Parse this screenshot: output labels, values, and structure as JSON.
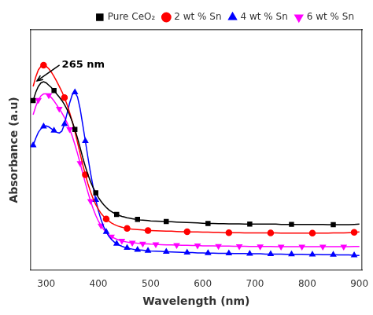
{
  "chart_data": {
    "type": "line",
    "xlabel": "Wavelength (nm)",
    "ylabel": "Absorbance (a.u)",
    "xlim": [
      270,
      905
    ],
    "ylim": [
      0.0,
      1.02
    ],
    "xticks": [
      300,
      400,
      500,
      600,
      700,
      800,
      900
    ],
    "tick_labels": "x",
    "grid": false,
    "legend": "upper right",
    "x": [
      275,
      280,
      285,
      290,
      295,
      300,
      305,
      310,
      315,
      320,
      325,
      330,
      335,
      340,
      345,
      350,
      355,
      360,
      365,
      370,
      375,
      380,
      385,
      390,
      395,
      400,
      405,
      410,
      415,
      420,
      425,
      430,
      435,
      440,
      445,
      450,
      455,
      460,
      465,
      470,
      475,
      480,
      485,
      490,
      495,
      500,
      510,
      520,
      530,
      540,
      550,
      560,
      570,
      580,
      590,
      600,
      610,
      620,
      630,
      640,
      650,
      660,
      670,
      680,
      690,
      700,
      710,
      720,
      730,
      740,
      750,
      760,
      770,
      780,
      790,
      800,
      810,
      820,
      830,
      840,
      850,
      860,
      870,
      880,
      890,
      900
    ],
    "series": [
      {
        "name": "Pure CeO₂",
        "color": "black",
        "marker": "square",
        "values": [
          0.72,
          0.755,
          0.78,
          0.795,
          0.8,
          0.795,
          0.785,
          0.775,
          0.762,
          0.748,
          0.735,
          0.72,
          0.703,
          0.682,
          0.658,
          0.63,
          0.597,
          0.56,
          0.52,
          0.478,
          0.44,
          0.405,
          0.375,
          0.35,
          0.328,
          0.308,
          0.292,
          0.278,
          0.266,
          0.256,
          0.248,
          0.242,
          0.236,
          0.232,
          0.228,
          0.225,
          0.222,
          0.22,
          0.218,
          0.216,
          0.215,
          0.213,
          0.212,
          0.211,
          0.21,
          0.209,
          0.208,
          0.207,
          0.206,
          0.205,
          0.204,
          0.203,
          0.202,
          0.201,
          0.2,
          0.199,
          0.198,
          0.198,
          0.197,
          0.197,
          0.196,
          0.196,
          0.196,
          0.195,
          0.195,
          0.195,
          0.195,
          0.195,
          0.195,
          0.195,
          0.194,
          0.194,
          0.194,
          0.194,
          0.194,
          0.194,
          0.194,
          0.194,
          0.194,
          0.193,
          0.193,
          0.193,
          0.193,
          0.193,
          0.194,
          0.195
        ]
      },
      {
        "name": "2 wt % Sn",
        "color": "red",
        "marker": "circle",
        "values": [
          0.78,
          0.82,
          0.85,
          0.865,
          0.87,
          0.865,
          0.855,
          0.84,
          0.822,
          0.802,
          0.78,
          0.758,
          0.732,
          0.702,
          0.668,
          0.63,
          0.588,
          0.542,
          0.495,
          0.448,
          0.405,
          0.366,
          0.332,
          0.303,
          0.278,
          0.258,
          0.241,
          0.228,
          0.217,
          0.208,
          0.2,
          0.194,
          0.189,
          0.185,
          0.182,
          0.179,
          0.177,
          0.175,
          0.174,
          0.173,
          0.172,
          0.171,
          0.17,
          0.169,
          0.168,
          0.168,
          0.167,
          0.166,
          0.165,
          0.165,
          0.164,
          0.163,
          0.163,
          0.162,
          0.162,
          0.161,
          0.161,
          0.16,
          0.16,
          0.159,
          0.159,
          0.159,
          0.159,
          0.158,
          0.158,
          0.158,
          0.158,
          0.158,
          0.158,
          0.158,
          0.157,
          0.157,
          0.157,
          0.157,
          0.157,
          0.157,
          0.157,
          0.157,
          0.157,
          0.157,
          0.158,
          0.158,
          0.158,
          0.159,
          0.16,
          0.162
        ]
      },
      {
        "name": "4 wt % Sn",
        "color": "blue",
        "marker": "triangle_up",
        "values": [
          0.53,
          0.56,
          0.585,
          0.6,
          0.61,
          0.612,
          0.608,
          0.6,
          0.592,
          0.585,
          0.582,
          0.59,
          0.62,
          0.665,
          0.71,
          0.745,
          0.755,
          0.735,
          0.685,
          0.618,
          0.548,
          0.478,
          0.412,
          0.352,
          0.298,
          0.252,
          0.215,
          0.185,
          0.162,
          0.143,
          0.13,
          0.12,
          0.112,
          0.106,
          0.101,
          0.097,
          0.094,
          0.091,
          0.089,
          0.087,
          0.086,
          0.085,
          0.084,
          0.083,
          0.082,
          0.081,
          0.08,
          0.079,
          0.078,
          0.077,
          0.076,
          0.075,
          0.074,
          0.074,
          0.073,
          0.073,
          0.072,
          0.072,
          0.071,
          0.071,
          0.071,
          0.07,
          0.07,
          0.07,
          0.069,
          0.069,
          0.069,
          0.068,
          0.068,
          0.068,
          0.068,
          0.067,
          0.067,
          0.067,
          0.067,
          0.066,
          0.066,
          0.066,
          0.065,
          0.065,
          0.065,
          0.064,
          0.064,
          0.064,
          0.063,
          0.062
        ]
      },
      {
        "name": "6 wt % Sn",
        "color": "magenta",
        "marker": "triangle_down",
        "values": [
          0.66,
          0.695,
          0.722,
          0.74,
          0.748,
          0.748,
          0.742,
          0.732,
          0.718,
          0.702,
          0.685,
          0.668,
          0.648,
          0.625,
          0.598,
          0.568,
          0.533,
          0.495,
          0.454,
          0.412,
          0.37,
          0.33,
          0.293,
          0.26,
          0.232,
          0.208,
          0.189,
          0.173,
          0.16,
          0.15,
          0.142,
          0.136,
          0.131,
          0.127,
          0.124,
          0.121,
          0.119,
          0.117,
          0.116,
          0.115,
          0.114,
          0.113,
          0.112,
          0.111,
          0.111,
          0.11,
          0.109,
          0.108,
          0.107,
          0.107,
          0.106,
          0.105,
          0.105,
          0.104,
          0.104,
          0.103,
          0.103,
          0.103,
          0.102,
          0.102,
          0.102,
          0.101,
          0.101,
          0.101,
          0.1,
          0.1,
          0.1,
          0.1,
          0.1,
          0.099,
          0.099,
          0.099,
          0.099,
          0.099,
          0.099,
          0.099,
          0.099,
          0.099,
          0.099,
          0.099,
          0.099,
          0.099,
          0.099,
          0.099,
          0.1,
          0.1
        ]
      }
    ],
    "annotations": [
      {
        "text": "265 nm",
        "x": 330,
        "y": 0.87,
        "arrow_x": 280,
        "arrow_y": 0.8
      }
    ]
  }
}
